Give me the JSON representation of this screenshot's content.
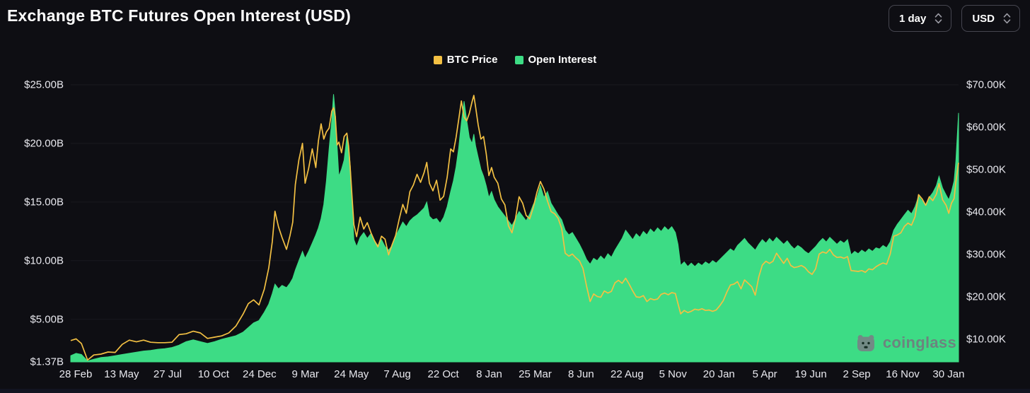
{
  "header": {
    "title": "Exchange BTC Futures Open Interest (USD)",
    "interval_select": {
      "value": "1 day"
    },
    "currency_select": {
      "value": "USD"
    }
  },
  "watermark": {
    "text": "coinglass"
  },
  "colors": {
    "background": "#0e0e13",
    "btc_price": "#F3C043",
    "open_interest": "#3DDC85",
    "axis_text": "#E8E8EE"
  },
  "chart_data": {
    "type": "area",
    "title": "Exchange BTC Futures Open Interest (USD)",
    "legend_position": "top-center",
    "grid": "faint-horizontal",
    "series": [
      {
        "name": "BTC Price",
        "style": "line",
        "axis": "right",
        "color": "#F3C043",
        "units": "USD thousands"
      },
      {
        "name": "Open Interest",
        "style": "area",
        "axis": "left",
        "color": "#3DDC85",
        "units": "USD billions"
      }
    ],
    "left_axis": {
      "min": 1.37,
      "max": 25,
      "ticks": [
        {
          "label": "$25.00B",
          "value": 25
        },
        {
          "label": "$20.00B",
          "value": 20
        },
        {
          "label": "$15.00B",
          "value": 15
        },
        {
          "label": "$10.00B",
          "value": 10
        },
        {
          "label": "$5.00B",
          "value": 5
        },
        {
          "label": "$1.37B",
          "value": 1.37
        }
      ]
    },
    "right_axis": {
      "min": 4.67,
      "max": 70,
      "ticks": [
        {
          "label": "$70.00K",
          "value": 70
        },
        {
          "label": "$60.00K",
          "value": 60
        },
        {
          "label": "$50.00K",
          "value": 50
        },
        {
          "label": "$40.00K",
          "value": 40
        },
        {
          "label": "$30.00K",
          "value": 30
        },
        {
          "label": "$20.00K",
          "value": 20
        },
        {
          "label": "$10.00K",
          "value": 10
        }
      ]
    },
    "x_axis": {
      "ticks": [
        {
          "label": "28 Feb",
          "f": 0.0056
        },
        {
          "label": "13 May",
          "f": 0.0573
        },
        {
          "label": "27 Jul",
          "f": 0.1091
        },
        {
          "label": "10 Oct",
          "f": 0.1608
        },
        {
          "label": "24 Dec",
          "f": 0.2126
        },
        {
          "label": "9 Mar",
          "f": 0.2643
        },
        {
          "label": "24 May",
          "f": 0.3161
        },
        {
          "label": "7 Aug",
          "f": 0.3678
        },
        {
          "label": "22 Oct",
          "f": 0.4196
        },
        {
          "label": "8 Jan",
          "f": 0.4713
        },
        {
          "label": "25 Mar",
          "f": 0.5231
        },
        {
          "label": "8 Jun",
          "f": 0.5748
        },
        {
          "label": "22 Aug",
          "f": 0.6266
        },
        {
          "label": "5 Nov",
          "f": 0.6783
        },
        {
          "label": "20 Jan",
          "f": 0.7301
        },
        {
          "label": "5 Apr",
          "f": 0.7818
        },
        {
          "label": "19 Jun",
          "f": 0.8336
        },
        {
          "label": "2 Sep",
          "f": 0.8853
        },
        {
          "label": "16 Nov",
          "f": 0.9371
        },
        {
          "label": "30 Jan",
          "f": 0.9888
        }
      ]
    },
    "points_format": [
      "x_fraction",
      "open_interest_billionUSD",
      "btc_price_thousandUSD"
    ],
    "points": [
      [
        0.0,
        1.9,
        9.7
      ],
      [
        0.006,
        2.1,
        10.1
      ],
      [
        0.012,
        2.0,
        9.0
      ],
      [
        0.019,
        1.45,
        5.1
      ],
      [
        0.026,
        1.6,
        6.3
      ],
      [
        0.034,
        1.75,
        6.5
      ],
      [
        0.042,
        1.8,
        7.0
      ],
      [
        0.05,
        1.9,
        6.9
      ],
      [
        0.058,
        2.0,
        8.8
      ],
      [
        0.066,
        2.1,
        9.8
      ],
      [
        0.074,
        2.2,
        9.4
      ],
      [
        0.082,
        2.3,
        9.8
      ],
      [
        0.09,
        2.35,
        9.3
      ],
      [
        0.098,
        2.45,
        9.2
      ],
      [
        0.106,
        2.5,
        9.2
      ],
      [
        0.114,
        2.6,
        9.3
      ],
      [
        0.122,
        2.8,
        11.1
      ],
      [
        0.13,
        3.1,
        11.3
      ],
      [
        0.138,
        3.25,
        11.9
      ],
      [
        0.146,
        3.1,
        11.5
      ],
      [
        0.154,
        2.95,
        10.2
      ],
      [
        0.162,
        3.1,
        10.5
      ],
      [
        0.17,
        3.3,
        10.8
      ],
      [
        0.178,
        3.45,
        11.5
      ],
      [
        0.186,
        3.6,
        13.1
      ],
      [
        0.194,
        3.9,
        15.9
      ],
      [
        0.2,
        4.3,
        18.4
      ],
      [
        0.206,
        4.7,
        19.3
      ],
      [
        0.212,
        4.9,
        18.1
      ],
      [
        0.218,
        5.6,
        21.8
      ],
      [
        0.223,
        6.3,
        26.8
      ],
      [
        0.227,
        7.2,
        33.0
      ],
      [
        0.23,
        8.0,
        40.2
      ],
      [
        0.234,
        7.6,
        36.5
      ],
      [
        0.238,
        7.9,
        34.0
      ],
      [
        0.243,
        7.7,
        31.2
      ],
      [
        0.247,
        8.1,
        34.5
      ],
      [
        0.25,
        8.5,
        37.6
      ],
      [
        0.253,
        9.2,
        46.5
      ],
      [
        0.257,
        10.0,
        52.3
      ],
      [
        0.261,
        10.8,
        56.2
      ],
      [
        0.264,
        10.2,
        46.8
      ],
      [
        0.268,
        10.8,
        50.3
      ],
      [
        0.272,
        11.5,
        54.9
      ],
      [
        0.276,
        12.2,
        50.5
      ],
      [
        0.279,
        12.8,
        56.8
      ],
      [
        0.282,
        13.6,
        60.8
      ],
      [
        0.285,
        14.8,
        57.2
      ],
      [
        0.288,
        16.8,
        58.9
      ],
      [
        0.291,
        19.5,
        59.8
      ],
      [
        0.294,
        22.0,
        63.8
      ],
      [
        0.296,
        24.2,
        64.6
      ],
      [
        0.298,
        22.5,
        62.5
      ],
      [
        0.3,
        19.8,
        55.8
      ],
      [
        0.302,
        17.2,
        56.5
      ],
      [
        0.305,
        17.8,
        54.0
      ],
      [
        0.308,
        18.6,
        57.8
      ],
      [
        0.311,
        20.6,
        58.6
      ],
      [
        0.313,
        19.8,
        55.5
      ],
      [
        0.315,
        18.0,
        49.8
      ],
      [
        0.317,
        14.5,
        43.2
      ],
      [
        0.319,
        11.8,
        37.0
      ],
      [
        0.322,
        11.2,
        34.2
      ],
      [
        0.326,
        12.0,
        38.8
      ],
      [
        0.33,
        12.4,
        36.0
      ],
      [
        0.334,
        11.9,
        37.5
      ],
      [
        0.338,
        12.3,
        35.2
      ],
      [
        0.342,
        11.7,
        33.3
      ],
      [
        0.346,
        11.3,
        31.8
      ],
      [
        0.35,
        11.8,
        34.3
      ],
      [
        0.354,
        11.2,
        33.6
      ],
      [
        0.358,
        10.9,
        29.9
      ],
      [
        0.362,
        11.3,
        32.3
      ],
      [
        0.366,
        12.1,
        34.5
      ],
      [
        0.37,
        12.7,
        38.4
      ],
      [
        0.374,
        13.3,
        41.8
      ],
      [
        0.378,
        12.9,
        39.7
      ],
      [
        0.382,
        13.4,
        44.8
      ],
      [
        0.386,
        13.7,
        46.4
      ],
      [
        0.39,
        13.9,
        48.9
      ],
      [
        0.394,
        14.2,
        47.0
      ],
      [
        0.398,
        14.5,
        49.3
      ],
      [
        0.401,
        15.0,
        51.7
      ],
      [
        0.404,
        13.8,
        46.8
      ],
      [
        0.408,
        13.5,
        45.0
      ],
      [
        0.412,
        13.6,
        47.5
      ],
      [
        0.416,
        13.2,
        42.8
      ],
      [
        0.42,
        13.7,
        43.7
      ],
      [
        0.424,
        14.6,
        48.2
      ],
      [
        0.428,
        15.9,
        54.9
      ],
      [
        0.431,
        16.8,
        54.2
      ],
      [
        0.434,
        18.0,
        57.6
      ],
      [
        0.437,
        19.6,
        61.8
      ],
      [
        0.44,
        21.8,
        66.2
      ],
      [
        0.443,
        23.6,
        62.4
      ],
      [
        0.446,
        22.0,
        61.5
      ],
      [
        0.449,
        20.5,
        63.3
      ],
      [
        0.452,
        20.0,
        66.0
      ],
      [
        0.454,
        20.8,
        67.5
      ],
      [
        0.456,
        19.8,
        64.8
      ],
      [
        0.459,
        18.8,
        60.5
      ],
      [
        0.462,
        17.8,
        57.2
      ],
      [
        0.465,
        17.2,
        57.8
      ],
      [
        0.468,
        16.4,
        53.8
      ],
      [
        0.471,
        15.4,
        48.6
      ],
      [
        0.474,
        15.9,
        50.5
      ],
      [
        0.477,
        15.2,
        48.2
      ],
      [
        0.481,
        14.6,
        46.8
      ],
      [
        0.485,
        14.2,
        43.1
      ],
      [
        0.489,
        13.8,
        41.7
      ],
      [
        0.493,
        13.4,
        36.8
      ],
      [
        0.497,
        13.0,
        35.1
      ],
      [
        0.501,
        13.6,
        38.6
      ],
      [
        0.505,
        14.2,
        43.6
      ],
      [
        0.509,
        13.8,
        42.1
      ],
      [
        0.513,
        13.4,
        39.2
      ],
      [
        0.517,
        14.0,
        38.4
      ],
      [
        0.521,
        14.8,
        41.1
      ],
      [
        0.525,
        15.4,
        44.6
      ],
      [
        0.529,
        16.4,
        47.2
      ],
      [
        0.533,
        15.4,
        45.4
      ],
      [
        0.537,
        15.9,
        42.6
      ],
      [
        0.541,
        14.9,
        40.1
      ],
      [
        0.545,
        14.4,
        39.6
      ],
      [
        0.549,
        13.9,
        38.5
      ],
      [
        0.553,
        13.5,
        36.1
      ],
      [
        0.557,
        12.6,
        30.3
      ],
      [
        0.561,
        12.2,
        29.6
      ],
      [
        0.565,
        12.4,
        30.1
      ],
      [
        0.569,
        11.9,
        29.2
      ],
      [
        0.573,
        11.4,
        28.5
      ],
      [
        0.577,
        10.8,
        26.7
      ],
      [
        0.581,
        10.1,
        22.5
      ],
      [
        0.585,
        9.7,
        18.9
      ],
      [
        0.589,
        10.2,
        20.7
      ],
      [
        0.593,
        10.0,
        20.1
      ],
      [
        0.597,
        10.4,
        19.9
      ],
      [
        0.601,
        10.1,
        21.4
      ],
      [
        0.605,
        10.6,
        20.9
      ],
      [
        0.609,
        10.3,
        21.3
      ],
      [
        0.613,
        10.9,
        23.3
      ],
      [
        0.617,
        11.4,
        23.9
      ],
      [
        0.621,
        11.9,
        23.2
      ],
      [
        0.625,
        12.6,
        24.4
      ],
      [
        0.629,
        12.2,
        23.0
      ],
      [
        0.633,
        11.8,
        21.4
      ],
      [
        0.637,
        12.3,
        20.0
      ],
      [
        0.641,
        12.0,
        19.9
      ],
      [
        0.645,
        12.5,
        20.3
      ],
      [
        0.649,
        12.2,
        18.9
      ],
      [
        0.653,
        12.7,
        19.6
      ],
      [
        0.657,
        12.4,
        19.3
      ],
      [
        0.661,
        12.8,
        19.5
      ],
      [
        0.665,
        12.5,
        20.6
      ],
      [
        0.669,
        12.9,
        20.9
      ],
      [
        0.673,
        12.6,
        20.5
      ],
      [
        0.677,
        12.9,
        21.0
      ],
      [
        0.681,
        12.4,
        20.8
      ],
      [
        0.684,
        11.4,
        18.4
      ],
      [
        0.687,
        9.6,
        16.0
      ],
      [
        0.691,
        9.9,
        16.8
      ],
      [
        0.695,
        9.5,
        16.3
      ],
      [
        0.699,
        9.8,
        16.6
      ],
      [
        0.703,
        9.5,
        17.1
      ],
      [
        0.707,
        9.8,
        16.9
      ],
      [
        0.711,
        9.6,
        17.2
      ],
      [
        0.715,
        9.9,
        16.8
      ],
      [
        0.719,
        9.7,
        16.9
      ],
      [
        0.723,
        10.0,
        16.6
      ],
      [
        0.727,
        9.8,
        16.9
      ],
      [
        0.731,
        10.1,
        17.9
      ],
      [
        0.735,
        10.4,
        19.1
      ],
      [
        0.739,
        10.7,
        21.1
      ],
      [
        0.743,
        11.0,
        22.8
      ],
      [
        0.747,
        10.8,
        23.0
      ],
      [
        0.751,
        11.3,
        23.6
      ],
      [
        0.755,
        11.6,
        21.9
      ],
      [
        0.759,
        11.9,
        24.0
      ],
      [
        0.763,
        11.5,
        23.2
      ],
      [
        0.767,
        11.2,
        22.4
      ],
      [
        0.771,
        10.9,
        20.4
      ],
      [
        0.775,
        11.4,
        24.7
      ],
      [
        0.779,
        11.8,
        27.5
      ],
      [
        0.783,
        11.5,
        28.4
      ],
      [
        0.787,
        11.9,
        27.9
      ],
      [
        0.791,
        11.6,
        28.4
      ],
      [
        0.795,
        12.0,
        30.3
      ],
      [
        0.799,
        11.7,
        29.1
      ],
      [
        0.803,
        11.4,
        27.9
      ],
      [
        0.807,
        11.7,
        29.1
      ],
      [
        0.811,
        11.3,
        27.4
      ],
      [
        0.815,
        11.0,
        26.9
      ],
      [
        0.819,
        11.3,
        27.1
      ],
      [
        0.823,
        11.1,
        27.4
      ],
      [
        0.827,
        10.8,
        26.9
      ],
      [
        0.831,
        10.6,
        25.9
      ],
      [
        0.835,
        10.9,
        25.3
      ],
      [
        0.839,
        11.2,
        26.6
      ],
      [
        0.843,
        11.6,
        30.1
      ],
      [
        0.847,
        11.9,
        30.6
      ],
      [
        0.851,
        11.6,
        30.3
      ],
      [
        0.855,
        12.0,
        31.2
      ],
      [
        0.859,
        11.7,
        29.9
      ],
      [
        0.863,
        11.4,
        29.3
      ],
      [
        0.867,
        11.7,
        29.4
      ],
      [
        0.871,
        11.5,
        29.1
      ],
      [
        0.875,
        11.8,
        29.5
      ],
      [
        0.879,
        10.5,
        26.2
      ],
      [
        0.883,
        10.8,
        26.1
      ],
      [
        0.887,
        10.6,
        26.0
      ],
      [
        0.891,
        10.9,
        26.2
      ],
      [
        0.895,
        10.7,
        25.8
      ],
      [
        0.899,
        11.0,
        26.6
      ],
      [
        0.903,
        10.8,
        26.4
      ],
      [
        0.907,
        11.1,
        27.1
      ],
      [
        0.911,
        11.0,
        27.6
      ],
      [
        0.915,
        11.3,
        28.0
      ],
      [
        0.919,
        11.1,
        27.7
      ],
      [
        0.923,
        11.6,
        30.1
      ],
      [
        0.927,
        12.6,
        34.3
      ],
      [
        0.931,
        13.1,
        34.6
      ],
      [
        0.935,
        13.5,
        35.1
      ],
      [
        0.939,
        13.9,
        36.6
      ],
      [
        0.943,
        14.3,
        37.4
      ],
      [
        0.947,
        14.0,
        36.9
      ],
      [
        0.951,
        14.6,
        38.9
      ],
      [
        0.955,
        15.5,
        44.1
      ],
      [
        0.959,
        15.1,
        43.1
      ],
      [
        0.963,
        14.8,
        41.6
      ],
      [
        0.967,
        15.4,
        43.6
      ],
      [
        0.971,
        15.8,
        42.7
      ],
      [
        0.975,
        16.4,
        44.2
      ],
      [
        0.978,
        17.2,
        46.7
      ],
      [
        0.982,
        16.2,
        42.9
      ],
      [
        0.986,
        15.6,
        41.6
      ],
      [
        0.989,
        15.2,
        39.7
      ],
      [
        0.992,
        15.9,
        42.1
      ],
      [
        0.995,
        16.8,
        43.2
      ],
      [
        0.997,
        18.5,
        47.1
      ],
      [
        1.0,
        22.6,
        51.6
      ]
    ]
  }
}
